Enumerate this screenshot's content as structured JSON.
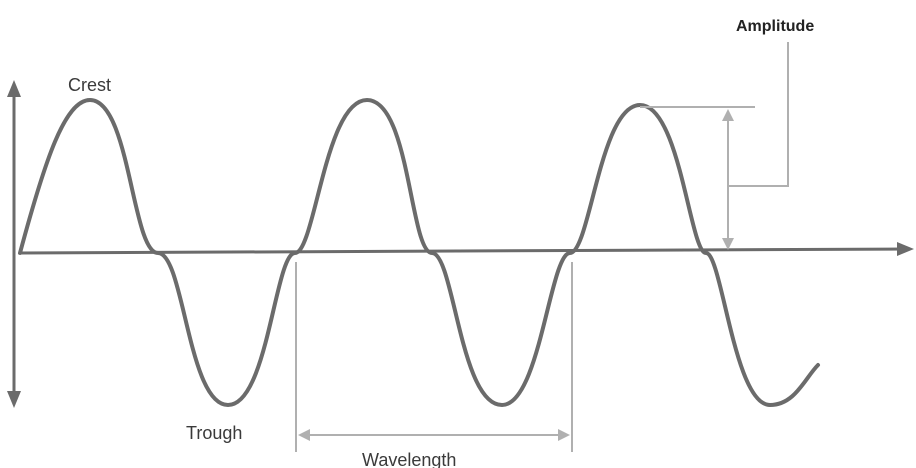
{
  "labels": {
    "crest": "Crest",
    "trough": "Trough",
    "wavelength": "Wavelength",
    "amplitude": "Amplitude"
  },
  "colors": {
    "wave": "#6b6b6b",
    "axis": "#6b6b6b",
    "measurement": "#b0b0b0",
    "text": "#3a3a3a"
  }
}
